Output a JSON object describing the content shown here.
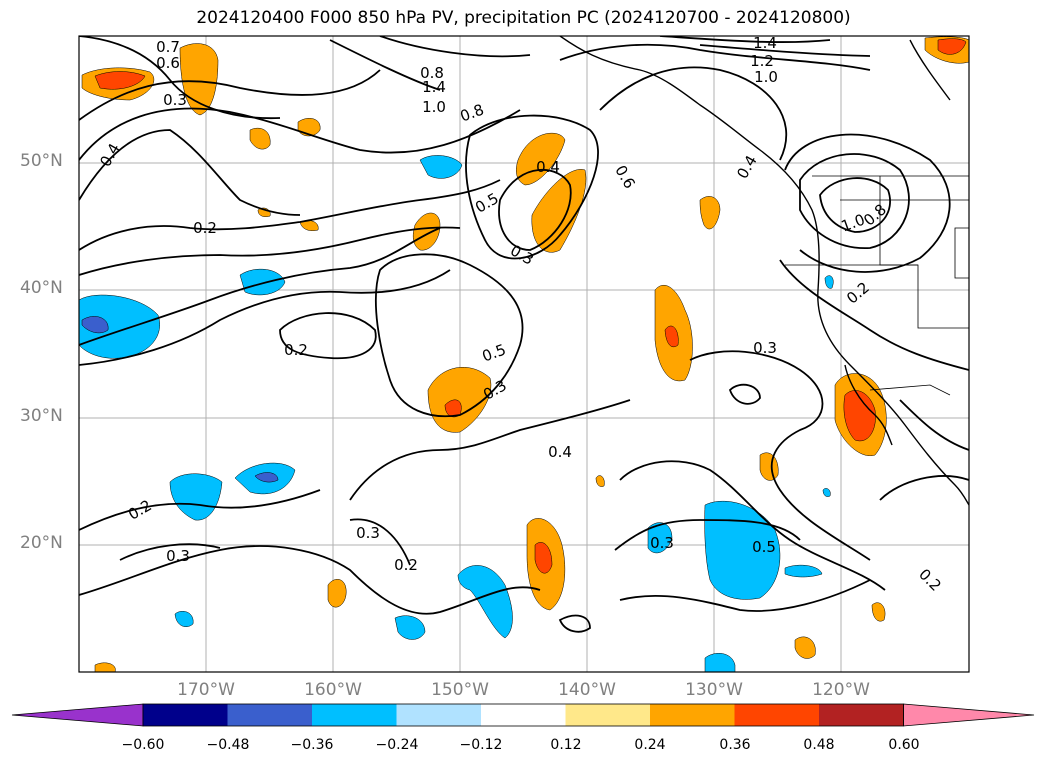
{
  "title": "2024120400 F000 850 hPa PV, precipitation PC (2024120700 - 2024120800)",
  "lat_labels": [
    "50°N",
    "40°N",
    "30°N",
    "20°N"
  ],
  "lon_labels": [
    "170°W",
    "160°W",
    "150°W",
    "140°W",
    "130°W",
    "120°W"
  ],
  "colorbar": {
    "ticks": [
      "−0.60",
      "−0.48",
      "−0.36",
      "−0.24",
      "−0.12",
      "0.12",
      "0.24",
      "0.36",
      "0.48",
      "0.60"
    ],
    "colors": [
      "#9932cc",
      "#00008b",
      "#3a5fcd",
      "#00bfff",
      "#b0e2ff",
      "#ffffff",
      "#ffe88a",
      "#ffa500",
      "#ff4500",
      "#b22222",
      "#ff88aa"
    ]
  },
  "contour_labels": [
    "0.7",
    "0.6",
    "0.3",
    "0.8",
    "1.4",
    "1.0",
    "0.8",
    "1.4",
    "1.2",
    "1.0",
    "0.4",
    "0.4",
    "0.2",
    "0.5",
    "0.3",
    "0.6",
    "1.0",
    "0.8",
    "0.4",
    "0.2",
    "0.5",
    "0.3",
    "0.3",
    "0.4",
    "0.2",
    "0.2",
    "0.3",
    "0.3",
    "0.2",
    "0.3",
    "0.5",
    "0.2"
  ]
}
